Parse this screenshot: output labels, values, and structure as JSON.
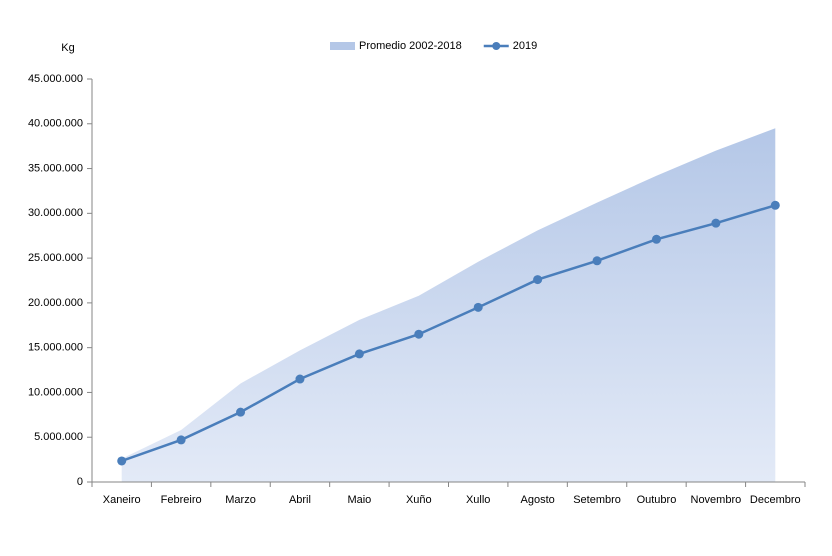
{
  "chart_data": {
    "type": "line",
    "y_label": "Kg",
    "categories": [
      "Xaneiro",
      "Febreiro",
      "Marzo",
      "Abril",
      "Maio",
      "Xuño",
      "Xullo",
      "Agosto",
      "Setembro",
      "Outubro",
      "Novembro",
      "Decembro"
    ],
    "series": [
      {
        "name": "Promedio 2002-2018",
        "type": "area",
        "color": "#b4c7e7",
        "values": [
          2600000,
          5800000,
          11000000,
          14700000,
          18100000,
          20800000,
          24600000,
          28100000,
          31200000,
          34200000,
          37000000,
          39500000
        ]
      },
      {
        "name": "2019",
        "type": "line",
        "color": "#4a7ebb",
        "values": [
          2350000,
          4700000,
          7800000,
          11500000,
          14300000,
          16500000,
          19500000,
          22600000,
          24700000,
          27100000,
          28900000,
          30900000
        ]
      }
    ],
    "ylim": [
      0,
      45000000
    ],
    "yticks": [
      0,
      {
        "value": 5000000,
        "label": "5.000.000"
      },
      {
        "value": 10000000,
        "label": "10.000.000"
      },
      {
        "value": 15000000,
        "label": "15.000.000"
      },
      {
        "value": 20000000,
        "label": "20.000.000"
      },
      {
        "value": 25000000,
        "label": "25.000.000"
      },
      {
        "value": 30000000,
        "label": "30.000.000"
      },
      {
        "value": 35000000,
        "label": "35.000.000"
      },
      {
        "value": 40000000,
        "label": "40.000.000"
      },
      {
        "value": 45000000,
        "label": "45.000.000"
      }
    ],
    "grid": false,
    "legend": "top"
  }
}
